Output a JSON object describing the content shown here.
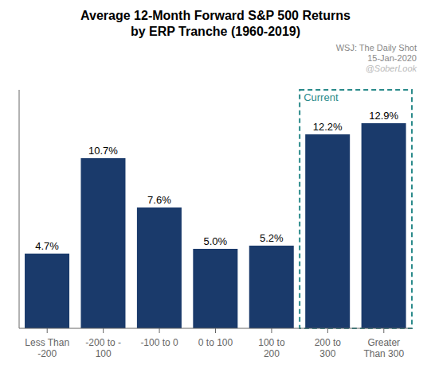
{
  "chart_data": {
    "type": "bar",
    "title": "Average 12-Month Forward S&P 500 Returns\nby ERP Tranche (1960-2019)",
    "subtitle": [
      "WSJ: The Daily Shot",
      "15-Jan-2020",
      "@SoberLook"
    ],
    "categories": [
      "Less Than\n-200",
      "-200 to -\n100",
      "-100 to 0",
      "0 to 100",
      "100 to\n200",
      "200 to\n300",
      "Greater\nThan 300"
    ],
    "values": [
      4.7,
      10.7,
      7.6,
      5.0,
      5.2,
      12.2,
      12.9
    ],
    "value_labels": [
      "4.7%",
      "10.7%",
      "7.6%",
      "5.0%",
      "5.2%",
      "12.2%",
      "12.9%"
    ],
    "data_labels": true,
    "color": "#1a3a6b",
    "ylim": [
      0,
      15
    ],
    "tick_labels": "x",
    "grid": false,
    "annotations": [
      {
        "text": "Current",
        "color": "#2a8a8a",
        "x": [
          "200 to\n300",
          "Greater\nThan 300"
        ]
      }
    ]
  }
}
